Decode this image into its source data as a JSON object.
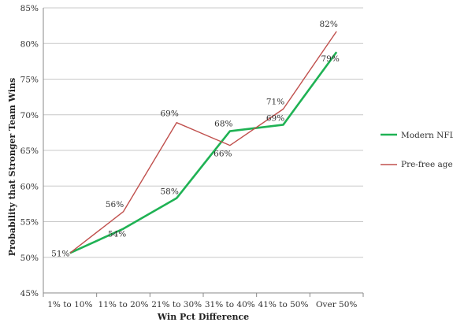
{
  "chart_data": {
    "type": "line",
    "title": "",
    "xlabel": "Win Pct Difference",
    "ylabel": "Probability that Stronger Team Wins",
    "categories": [
      "1% to 10%",
      "11% to 20%",
      "21% to 30%",
      "31% to 40%",
      "41% to 50%",
      "Over 50%"
    ],
    "ylim": [
      45,
      85
    ],
    "yticks": [
      45,
      50,
      55,
      60,
      65,
      70,
      75,
      80,
      85
    ],
    "ytick_labels": [
      "45%",
      "50%",
      "55%",
      "60%",
      "65%",
      "70%",
      "75%",
      "80%",
      "85%"
    ],
    "grid": true,
    "legend_position": "right",
    "series": [
      {
        "name": "Modern NFL",
        "color": "#1fb254",
        "values": [
          50.6,
          54.0,
          58.3,
          67.7,
          68.6,
          78.8
        ],
        "labels": [
          "51%",
          "54%",
          "58%",
          "68%",
          "69%",
          "79%"
        ]
      },
      {
        "name": "Pre-free agency",
        "color": "#c0504d",
        "values": [
          50.6,
          56.4,
          68.9,
          65.7,
          70.8,
          81.7
        ],
        "labels": [
          "",
          "56%",
          "69%",
          "66%",
          "71%",
          "82%"
        ]
      }
    ]
  }
}
